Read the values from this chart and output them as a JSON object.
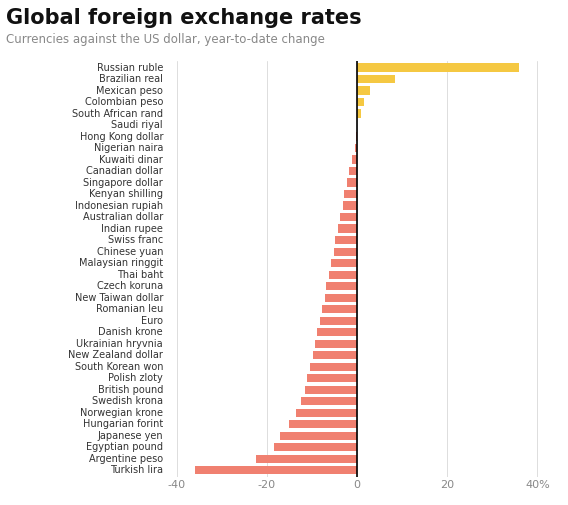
{
  "title": "Global foreign exchange rates",
  "subtitle": "Currencies against the US dollar, year-to-date change",
  "currencies": [
    "Russian ruble",
    "Brazilian real",
    "Mexican peso",
    "Colombian peso",
    "South African rand",
    "Saudi riyal",
    "Hong Kong dollar",
    "Nigerian naira",
    "Kuwaiti dinar",
    "Canadian dollar",
    "Singapore dollar",
    "Kenyan shilling",
    "Indonesian rupiah",
    "Australian dollar",
    "Indian rupee",
    "Swiss franc",
    "Chinese yuan",
    "Malaysian ringgit",
    "Thai baht",
    "Czech koruna",
    "New Taiwan dollar",
    "Romanian leu",
    "Euro",
    "Danish krone",
    "Ukrainian hryvnia",
    "New Zealand dollar",
    "South Korean won",
    "Polish zloty",
    "British pound",
    "Swedish krona",
    "Norwegian krone",
    "Hungarian forint",
    "Japanese yen",
    "Egyptian pound",
    "Argentine peso",
    "Turkish lira"
  ],
  "values": [
    36.0,
    8.5,
    2.8,
    1.5,
    0.8,
    0.05,
    -0.3,
    -0.5,
    -1.0,
    -1.8,
    -2.2,
    -2.8,
    -3.2,
    -3.8,
    -4.2,
    -4.8,
    -5.2,
    -5.8,
    -6.2,
    -6.8,
    -7.2,
    -7.8,
    -8.3,
    -8.8,
    -9.3,
    -9.8,
    -10.5,
    -11.0,
    -11.5,
    -12.5,
    -13.5,
    -15.0,
    -17.0,
    -18.5,
    -22.5,
    -36.0
  ],
  "color_positive": "#f5c842",
  "color_negative": "#f08070",
  "xlim_left": -42,
  "xlim_right": 43,
  "background_color": "#ffffff",
  "title_fontsize": 15,
  "subtitle_fontsize": 8.5,
  "label_fontsize": 7,
  "tick_fontsize": 8,
  "bar_height": 0.72
}
